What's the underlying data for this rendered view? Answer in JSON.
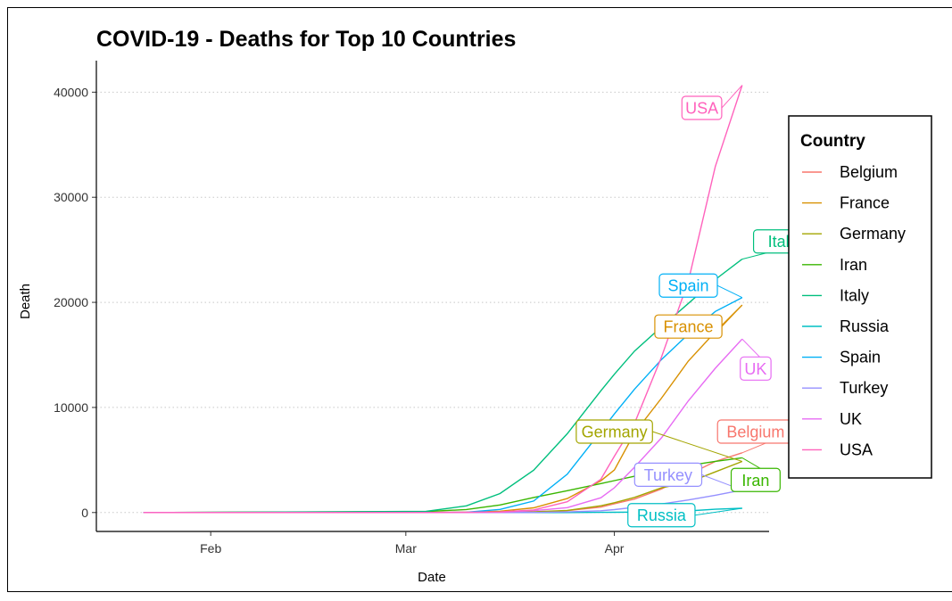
{
  "chart_data": {
    "type": "line",
    "title": "COVID-19 - Deaths for Top 10 Countries",
    "xlabel": "Date",
    "ylabel": "Death",
    "x_range": [
      "2020-01-22",
      "2020-04-20"
    ],
    "ylim": [
      0,
      41000
    ],
    "y_ticks": [
      0,
      10000,
      20000,
      30000,
      40000
    ],
    "x_ticks": [
      {
        "date": "2020-02-01",
        "label": "Feb"
      },
      {
        "date": "2020-03-01",
        "label": "Mar"
      },
      {
        "date": "2020-04-01",
        "label": "Apr"
      }
    ],
    "grid": "horizontal dotted major",
    "legend": {
      "title": "Country",
      "position": "right"
    },
    "x": [
      "2020-01-22",
      "2020-03-04",
      "2020-03-10",
      "2020-03-15",
      "2020-03-20",
      "2020-03-25",
      "2020-03-30",
      "2020-04-01",
      "2020-04-04",
      "2020-04-08",
      "2020-04-12",
      "2020-04-16",
      "2020-04-20"
    ],
    "series": [
      {
        "name": "Belgium",
        "color": "#F8766D",
        "values": [
          0,
          0,
          0,
          4,
          37,
          178,
          513,
          828,
          1283,
          2240,
          3600,
          4857,
          5683
        ]
      },
      {
        "name": "France",
        "color": "#D89000",
        "values": [
          0,
          4,
          33,
          127,
          450,
          1333,
          3030,
          4043,
          7574,
          10887,
          14412,
          17188,
          19744
        ]
      },
      {
        "name": "Germany",
        "color": "#A3A500",
        "values": [
          0,
          0,
          2,
          12,
          67,
          206,
          645,
          931,
          1444,
          2349,
          2873,
          3868,
          4862
        ]
      },
      {
        "name": "Iran",
        "color": "#39B600",
        "values": [
          0,
          92,
          291,
          724,
          1433,
          2077,
          2757,
          3036,
          3452,
          3993,
          4474,
          4869,
          5209
        ]
      },
      {
        "name": "Italy",
        "color": "#00BF7D",
        "values": [
          0,
          107,
          631,
          1809,
          4032,
          7503,
          11591,
          13155,
          15362,
          17669,
          19899,
          22170,
          24114
        ]
      },
      {
        "name": "Russia",
        "color": "#00BFC4",
        "values": [
          0,
          0,
          0,
          0,
          1,
          3,
          17,
          24,
          43,
          76,
          148,
          313,
          405
        ]
      },
      {
        "name": "Spain",
        "color": "#00B0F6",
        "values": [
          0,
          2,
          36,
          297,
          1093,
          3647,
          7716,
          9387,
          11744,
          14555,
          16972,
          19130,
          20453
        ]
      },
      {
        "name": "Turkey",
        "color": "#9590FF",
        "values": [
          0,
          0,
          0,
          0,
          9,
          59,
          168,
          277,
          501,
          812,
          1198,
          1643,
          2140
        ]
      },
      {
        "name": "UK",
        "color": "#E76BF3",
        "values": [
          0,
          0,
          6,
          21,
          177,
          465,
          1408,
          2357,
          4320,
          7111,
          10629,
          13729,
          16509
        ]
      },
      {
        "name": "USA",
        "color": "#FF62BC",
        "values": [
          0,
          11,
          28,
          59,
          244,
          1027,
          3170,
          5361,
          8496,
          14795,
          22020,
          32916,
          40661
        ]
      }
    ],
    "annotations": [
      {
        "text": "USA",
        "series": "USA",
        "value_date": "2020-04-14",
        "value": 38500
      },
      {
        "text": "Italy",
        "series": "Italy",
        "value_date": "2020-04-26",
        "value": 25800
      },
      {
        "text": "Spain",
        "series": "Spain",
        "value_date": "2020-04-12",
        "value": 21600
      },
      {
        "text": "France",
        "series": "France",
        "value_date": "2020-04-12",
        "value": 17700
      },
      {
        "text": "UK",
        "series": "UK",
        "value_date": "2020-04-22",
        "value": 13700
      },
      {
        "text": "Germany",
        "series": "Germany",
        "value_date": "2020-04-01",
        "value": 7700
      },
      {
        "text": "Belgium",
        "series": "Belgium",
        "value_date": "2020-04-22",
        "value": 7700
      },
      {
        "text": "Turkey",
        "series": "Turkey",
        "value_date": "2020-04-09",
        "value": 3600
      },
      {
        "text": "Iran",
        "series": "Iran",
        "value_date": "2020-04-22",
        "value": 3100
      },
      {
        "text": "Russia",
        "series": "Russia",
        "value_date": "2020-04-08",
        "value": -250
      }
    ]
  }
}
